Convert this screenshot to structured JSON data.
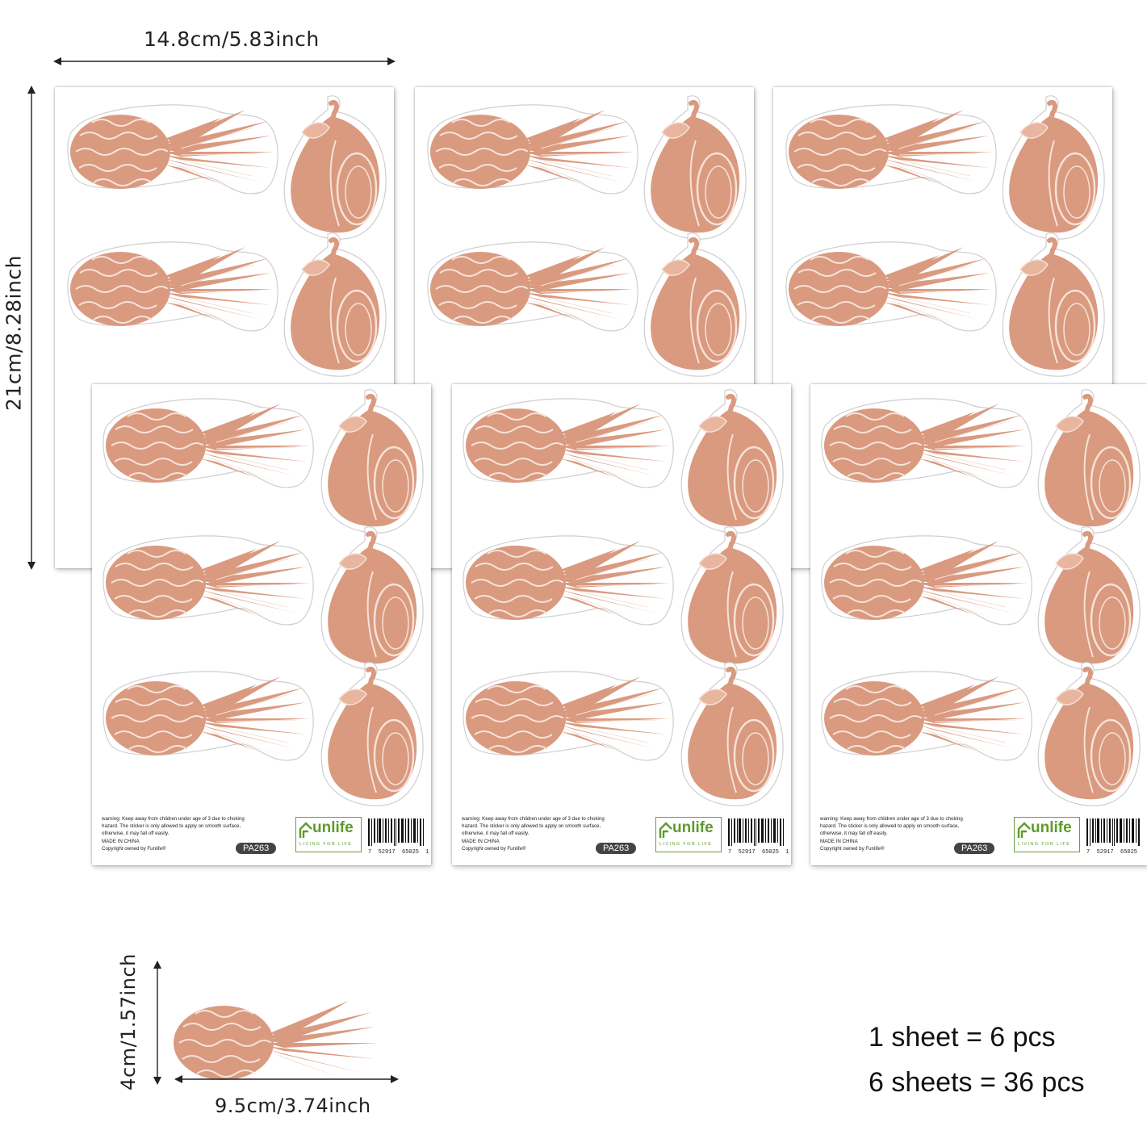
{
  "dimensions": {
    "sheet_width": "14.8cm/5.83inch",
    "sheet_height": "21cm/8.28inch",
    "sticker_height": "4cm/1.57inch",
    "sticker_width": "9.5cm/3.74inch"
  },
  "summary": {
    "line1": "1 sheet = 6 pcs",
    "line2": "6 sheets = 36 pcs"
  },
  "sheet": {
    "warning_line1": "warning: Keep away from children under age of 3 due to choking",
    "warning_line2": "hazard. The sticker is only allowed to apply on smooth surface,",
    "warning_line3": "otherwise, it may fall off easily.",
    "made_in": "MADE IN CHINA",
    "copyright": "Copyright owned by Funlife®",
    "product_code": "PA263",
    "brand": "unlife",
    "brand_tagline": "LIVING FOR LIFE",
    "barcode_number": "7  52917  65025  1"
  },
  "colors": {
    "sticker_fill": "#d99a80",
    "sticker_line": "#f6e2d8",
    "brand_green": "#5f9a2e"
  },
  "icons": [
    "pineapple-icon",
    "pear-icon",
    "dimension-arrow-icon"
  ]
}
